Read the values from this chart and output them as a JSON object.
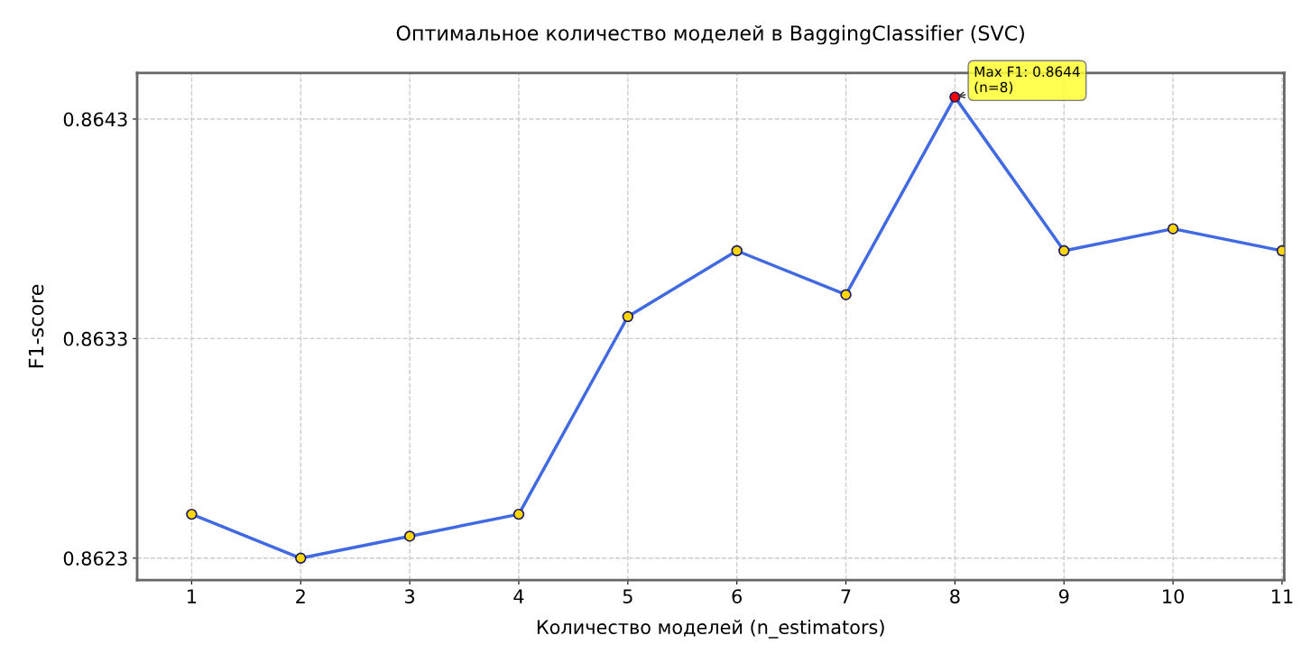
{
  "chart_data": {
    "type": "line",
    "title": "Оптимальное количество моделей в BaggingClassifier (SVC)",
    "xlabel": "Количество моделей (n_estimators)",
    "ylabel": "F1-score",
    "x": [
      1,
      2,
      3,
      4,
      5,
      6,
      7,
      8,
      9,
      10,
      11
    ],
    "series": [
      {
        "color": "#4169e1",
        "values": [
          0.8625,
          0.8623,
          0.8624,
          0.8625,
          0.8634,
          0.8637,
          0.8635,
          0.8644,
          0.8637,
          0.8638,
          0.8637
        ],
        "colors": [
          "#ffd700",
          "#ffd700",
          "#ffd700",
          "#ffd700",
          "#ffd700",
          "#ffd700",
          "#ffd700",
          "#ff0000",
          "#ffd700",
          "#ffd700",
          "#ffd700"
        ]
      }
    ],
    "xlim": [
      0.5,
      11.02
    ],
    "xticks": [
      1,
      2,
      3,
      4,
      5,
      6,
      7,
      8,
      9,
      10,
      11
    ],
    "ylim": [
      0.8622,
      0.86451
    ],
    "yticks": [
      0.8623,
      0.8633,
      0.8643
    ],
    "annotations": [
      {
        "text": "Max F1: 0.8644\n(n=8)",
        "x": 8,
        "y": 0.8644
      }
    ],
    "grid": true,
    "marker": "circle",
    "line_style": "solid"
  }
}
